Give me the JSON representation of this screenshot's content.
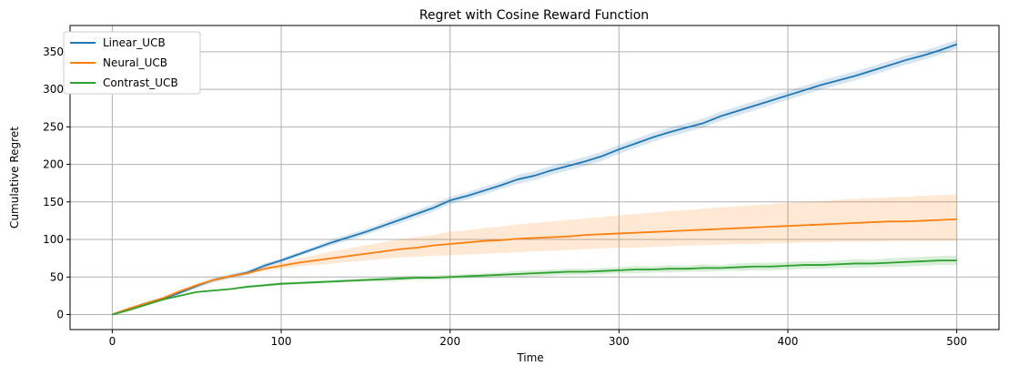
{
  "chart_data": {
    "type": "line",
    "title": "Regret with Cosine Reward Function",
    "xlabel": "Time",
    "ylabel": "Cumulative Regret",
    "xlim": [
      -25,
      525
    ],
    "ylim": [
      -20,
      385
    ],
    "x_ticks": [
      0,
      100,
      200,
      300,
      400,
      500
    ],
    "y_ticks": [
      0,
      50,
      100,
      150,
      200,
      250,
      300,
      350
    ],
    "grid": true,
    "legend_position": "top-left",
    "series": [
      {
        "name": "Linear_UCB",
        "color": "#1f77b4",
        "x": [
          0,
          10,
          20,
          30,
          40,
          50,
          60,
          70,
          80,
          90,
          100,
          110,
          120,
          130,
          140,
          150,
          160,
          170,
          180,
          190,
          200,
          210,
          220,
          230,
          240,
          250,
          260,
          270,
          280,
          290,
          300,
          310,
          320,
          330,
          340,
          350,
          360,
          370,
          380,
          390,
          400,
          410,
          420,
          430,
          440,
          450,
          460,
          470,
          480,
          490,
          500
        ],
        "y": [
          0,
          8,
          15,
          21,
          29,
          38,
          46,
          51,
          56,
          65,
          72,
          80,
          88,
          96,
          103,
          110,
          118,
          126,
          134,
          142,
          152,
          158,
          165,
          172,
          180,
          185,
          192,
          198,
          204,
          211,
          220,
          228,
          236,
          243,
          249,
          255,
          264,
          271,
          278,
          285,
          292,
          299,
          306,
          312,
          318,
          325,
          332,
          339,
          345,
          352,
          360
        ],
        "lower": [
          0,
          7,
          13,
          19,
          27,
          35,
          43,
          48,
          53,
          62,
          69,
          77,
          85,
          92,
          99,
          106,
          114,
          121,
          129,
          137,
          147,
          153,
          160,
          167,
          174,
          179,
          186,
          192,
          198,
          205,
          214,
          222,
          230,
          237,
          243,
          249,
          258,
          265,
          272,
          279,
          286,
          293,
          300,
          306,
          312,
          319,
          326,
          333,
          339,
          346,
          354
        ],
        "upper": [
          0,
          9,
          17,
          23,
          31,
          41,
          49,
          54,
          59,
          68,
          75,
          83,
          91,
          100,
          107,
          114,
          122,
          131,
          139,
          147,
          157,
          163,
          170,
          177,
          186,
          191,
          198,
          204,
          210,
          217,
          226,
          234,
          242,
          249,
          255,
          261,
          270,
          277,
          284,
          291,
          298,
          305,
          312,
          318,
          324,
          331,
          338,
          345,
          351,
          358,
          366
        ]
      },
      {
        "name": "Neural_UCB",
        "color": "#ff7f0e",
        "x": [
          0,
          10,
          20,
          30,
          40,
          50,
          60,
          70,
          80,
          90,
          100,
          110,
          120,
          130,
          140,
          150,
          160,
          170,
          180,
          190,
          200,
          210,
          220,
          230,
          240,
          250,
          260,
          270,
          280,
          290,
          300,
          310,
          320,
          330,
          340,
          350,
          360,
          370,
          380,
          390,
          400,
          410,
          420,
          430,
          440,
          450,
          460,
          470,
          480,
          490,
          500
        ],
        "y": [
          0,
          8,
          15,
          22,
          31,
          39,
          46,
          51,
          55,
          61,
          65,
          69,
          72,
          75,
          78,
          81,
          84,
          87,
          89,
          92,
          94,
          96,
          98,
          99,
          101,
          102,
          103,
          104,
          106,
          107,
          108,
          109,
          110,
          111,
          112,
          113,
          114,
          115,
          116,
          117,
          118,
          119,
          120,
          121,
          122,
          123,
          124,
          124,
          125,
          126,
          127
        ],
        "lower": [
          0,
          7,
          14,
          21,
          29,
          37,
          44,
          49,
          53,
          58,
          61,
          64,
          66,
          68,
          70,
          72,
          74,
          76,
          77,
          78,
          79,
          80,
          81,
          82,
          83,
          84,
          85,
          86,
          87,
          88,
          89,
          89,
          90,
          91,
          92,
          92,
          93,
          94,
          94,
          95,
          95,
          96,
          96,
          97,
          97,
          97,
          98,
          98,
          98,
          98,
          98
        ],
        "upper": [
          0,
          9,
          16,
          23,
          33,
          41,
          48,
          53,
          57,
          64,
          69,
          75,
          79,
          84,
          88,
          92,
          96,
          100,
          103,
          106,
          110,
          112,
          115,
          117,
          120,
          122,
          124,
          126,
          128,
          130,
          132,
          134,
          136,
          138,
          139,
          141,
          143,
          144,
          146,
          147,
          149,
          150,
          151,
          153,
          154,
          155,
          156,
          157,
          158,
          159,
          160
        ]
      },
      {
        "name": "Contrast_UCB",
        "color": "#2ca02c",
        "x": [
          0,
          10,
          20,
          30,
          40,
          50,
          60,
          70,
          80,
          90,
          100,
          110,
          120,
          130,
          140,
          150,
          160,
          170,
          180,
          190,
          200,
          210,
          220,
          230,
          240,
          250,
          260,
          270,
          280,
          290,
          300,
          310,
          320,
          330,
          340,
          350,
          360,
          370,
          380,
          390,
          400,
          410,
          420,
          430,
          440,
          450,
          460,
          470,
          480,
          490,
          500
        ],
        "y": [
          0,
          6,
          13,
          20,
          25,
          30,
          32,
          34,
          37,
          39,
          41,
          42,
          43,
          44,
          45,
          46,
          47,
          48,
          49,
          49,
          50,
          51,
          52,
          53,
          54,
          55,
          56,
          57,
          57,
          58,
          59,
          60,
          60,
          61,
          61,
          62,
          62,
          63,
          64,
          64,
          65,
          66,
          66,
          67,
          68,
          68,
          69,
          70,
          71,
          72,
          72
        ],
        "lower": [
          0,
          5,
          12,
          19,
          24,
          29,
          31,
          33,
          35,
          37,
          39,
          40,
          41,
          42,
          43,
          44,
          44,
          45,
          46,
          46,
          47,
          48,
          49,
          50,
          50,
          51,
          52,
          53,
          53,
          54,
          55,
          55,
          56,
          56,
          57,
          57,
          58,
          58,
          59,
          59,
          60,
          61,
          61,
          62,
          62,
          63,
          63,
          64,
          65,
          66,
          66
        ],
        "upper": [
          0,
          7,
          14,
          21,
          26,
          31,
          33,
          35,
          39,
          41,
          43,
          44,
          45,
          46,
          47,
          48,
          50,
          51,
          52,
          52,
          53,
          54,
          55,
          56,
          58,
          59,
          60,
          61,
          61,
          62,
          63,
          65,
          64,
          66,
          65,
          67,
          66,
          68,
          69,
          69,
          70,
          71,
          71,
          72,
          74,
          73,
          75,
          76,
          77,
          78,
          78
        ]
      }
    ]
  }
}
